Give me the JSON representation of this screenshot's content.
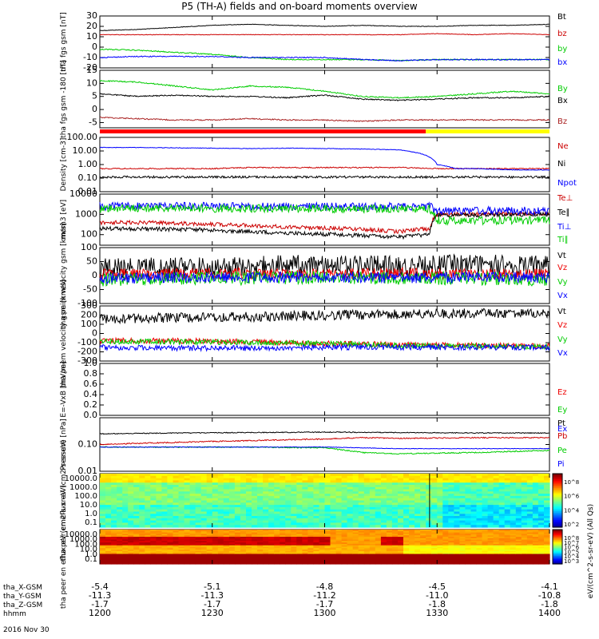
{
  "title": "P5 (TH-A) fields and on-board moments overview",
  "date": "2016 Nov 30",
  "colorbar_label": "eV/(cm^2-s-sr-eV) (All Qs)",
  "chart_data": [
    {
      "type": "line",
      "panel": "fgs",
      "ylabel": "tha fgs gsm [nT]",
      "ylim": [
        -20,
        30
      ],
      "yticks": [
        30,
        20,
        10,
        0,
        -10,
        -20
      ],
      "series": [
        {
          "name": "Bt",
          "color": "#000000",
          "x": [
            0,
            10,
            20,
            30,
            40,
            50,
            60,
            70,
            80,
            90,
            100,
            110,
            120
          ],
          "y": [
            16,
            17,
            19,
            21,
            22,
            21,
            20,
            21,
            20,
            20,
            21,
            21,
            22
          ]
        },
        {
          "name": "bz",
          "color": "#cc0000",
          "x": [
            0,
            10,
            20,
            30,
            40,
            50,
            60,
            70,
            80,
            90,
            100,
            110,
            120
          ],
          "y": [
            12,
            12,
            12,
            12,
            12,
            12,
            12,
            12,
            12,
            13,
            12,
            13,
            12
          ]
        },
        {
          "name": "by",
          "color": "#00cc00",
          "x": [
            0,
            10,
            20,
            30,
            40,
            50,
            60,
            70,
            80,
            90,
            100,
            110,
            120
          ],
          "y": [
            -2,
            -3,
            -5,
            -7,
            -10,
            -12,
            -12,
            -12,
            -13,
            -12,
            -12,
            -12,
            -12
          ]
        },
        {
          "name": "bx",
          "color": "#0000ff",
          "x": [
            0,
            10,
            20,
            30,
            40,
            50,
            60,
            70,
            80,
            90,
            100,
            110,
            120
          ],
          "y": [
            -10,
            -9,
            -9,
            -9,
            -10,
            -10,
            -10,
            -12,
            -13,
            -12,
            -12,
            -12,
            -12
          ]
        }
      ]
    },
    {
      "type": "line",
      "panel": "angles",
      "ylabel": "tha fgs gsm -180 [nT]",
      "ylim": [
        -7,
        15
      ],
      "yticks": [
        15,
        10,
        5,
        0,
        -5
      ],
      "series": [
        {
          "name": "By",
          "color": "#00cc00",
          "x": [
            0,
            10,
            20,
            30,
            40,
            50,
            60,
            70,
            80,
            90,
            100,
            110,
            120
          ],
          "y": [
            11,
            10.5,
            9,
            7.5,
            9,
            8.5,
            7,
            5,
            4.5,
            5,
            6,
            7,
            6
          ]
        },
        {
          "name": "Bx",
          "color": "#000000",
          "x": [
            0,
            10,
            20,
            30,
            40,
            50,
            60,
            70,
            80,
            90,
            100,
            110,
            120
          ],
          "y": [
            6,
            5,
            5.5,
            5,
            5,
            4.5,
            5.5,
            4,
            3.5,
            4,
            4.5,
            4.5,
            5
          ]
        },
        {
          "name": "Bz",
          "color": "#aa2222",
          "x": [
            0,
            10,
            20,
            30,
            40,
            50,
            60,
            70,
            80,
            90,
            100,
            110,
            120
          ],
          "y": [
            -3,
            -3.5,
            -4,
            -4,
            -3.5,
            -4,
            -4,
            -4.5,
            -4,
            -4,
            -4,
            -4,
            -4
          ]
        }
      ]
    },
    {
      "type": "line",
      "panel": "density",
      "ylabel": "Density [cm-3]",
      "scale": "log",
      "ylim": [
        0.01,
        100
      ],
      "yticks": [
        "100.00",
        "10.00",
        "1.00",
        "0.10",
        "0.01"
      ],
      "series": [
        {
          "name": "Ne",
          "color": "#cc0000",
          "x": [
            0,
            10,
            20,
            30,
            40,
            50,
            60,
            70,
            80,
            90,
            100,
            110,
            120
          ],
          "y": [
            0.5,
            0.5,
            0.5,
            0.5,
            0.6,
            0.6,
            0.6,
            0.6,
            0.6,
            0.5,
            0.5,
            0.5,
            0.5
          ]
        },
        {
          "name": "Ni",
          "color": "#000000",
          "x": [
            0,
            10,
            20,
            30,
            40,
            50,
            60,
            70,
            80,
            90,
            100,
            110,
            120
          ],
          "y": [
            0.12,
            0.12,
            0.12,
            0.12,
            0.12,
            0.12,
            0.12,
            0.12,
            0.12,
            0.12,
            0.12,
            0.12,
            0.12
          ]
        },
        {
          "name": "Npot",
          "color": "#0000ff",
          "x": [
            0,
            10,
            20,
            30,
            40,
            50,
            60,
            70,
            80,
            86,
            90,
            95,
            100,
            110,
            120
          ],
          "y": [
            18,
            18,
            17,
            16,
            15,
            16,
            15,
            14,
            12,
            6,
            1,
            0.5,
            0.5,
            0.4,
            0.4
          ]
        }
      ]
    },
    {
      "type": "line",
      "panel": "temperature",
      "ylabel": "mom3 [eV]",
      "scale": "log",
      "ylim": [
        30,
        10000
      ],
      "yticks": [
        "10000",
        "1000",
        "100"
      ],
      "series": [
        {
          "name": "Te⊥",
          "color": "#cc0000",
          "x": [
            0,
            10,
            20,
            30,
            40,
            50,
            60,
            70,
            80,
            85,
            88,
            90,
            100,
            110,
            120
          ],
          "y": [
            400,
            390,
            370,
            330,
            280,
            240,
            210,
            180,
            140,
            180,
            190,
            1000,
            1000,
            1100,
            1100
          ]
        },
        {
          "name": "Te∥",
          "color": "#000000",
          "x": [
            0,
            10,
            20,
            30,
            40,
            50,
            60,
            70,
            80,
            85,
            88,
            90,
            100,
            110,
            120
          ],
          "y": [
            200,
            195,
            185,
            165,
            140,
            120,
            105,
            90,
            75,
            90,
            100,
            900,
            900,
            1000,
            1000
          ]
        },
        {
          "name": "Ti⊥",
          "color": "#0000ff",
          "x": [
            0,
            30,
            60,
            88,
            90,
            120
          ],
          "y": [
            2500,
            2500,
            2400,
            2400,
            1500,
            1500
          ]
        },
        {
          "name": "Ti∥",
          "color": "#00cc00",
          "x": [
            0,
            30,
            60,
            88,
            90,
            120
          ],
          "y": [
            2000,
            2000,
            1900,
            1900,
            500,
            500
          ]
        }
      ]
    },
    {
      "type": "line",
      "panel": "ion-velocity",
      "ylabel": "tha peim velocity gsm [km/s]",
      "ylim": [
        -100,
        100
      ],
      "yticks": [
        100,
        50,
        0,
        -50,
        -100
      ],
      "series": [
        {
          "name": "Vt",
          "color": "#000000",
          "x": [
            0,
            20,
            40,
            60,
            80,
            100,
            120
          ],
          "y": [
            25,
            30,
            35,
            40,
            35,
            40,
            35
          ]
        },
        {
          "name": "Vz",
          "color": "#ee0000",
          "x": [
            0,
            20,
            40,
            60,
            80,
            100,
            120
          ],
          "y": [
            5,
            5,
            8,
            5,
            8,
            5,
            5
          ]
        },
        {
          "name": "Vy",
          "color": "#00cc00",
          "x": [
            0,
            20,
            40,
            60,
            80,
            100,
            120
          ],
          "y": [
            -15,
            -10,
            -10,
            -5,
            -10,
            -10,
            -15
          ]
        },
        {
          "name": "Vx",
          "color": "#0000ff",
          "x": [
            0,
            20,
            40,
            60,
            80,
            100,
            120
          ],
          "y": [
            -10,
            -8,
            -6,
            -5,
            -8,
            -6,
            -8
          ]
        }
      ]
    },
    {
      "type": "line",
      "panel": "electron-velocity",
      "ylabel": "tha peem velocity gsm [km/s]",
      "ylim": [
        -300,
        300
      ],
      "yticks": [
        300,
        200,
        100,
        0,
        -100,
        -200,
        -300
      ],
      "series": [
        {
          "name": "Vt",
          "color": "#000000",
          "x": [
            0,
            20,
            40,
            60,
            80,
            100,
            120
          ],
          "y": [
            160,
            170,
            180,
            200,
            210,
            220,
            210
          ]
        },
        {
          "name": "Vz",
          "color": "#ee0000",
          "x": [
            0,
            20,
            40,
            60,
            80,
            100,
            120
          ],
          "y": [
            -80,
            -80,
            -90,
            -110,
            -120,
            -130,
            -140
          ]
        },
        {
          "name": "Vy",
          "color": "#00cc00",
          "x": [
            0,
            20,
            40,
            60,
            80,
            100,
            120
          ],
          "y": [
            -90,
            -90,
            -100,
            -110,
            -130,
            -140,
            -140
          ]
        },
        {
          "name": "Vx",
          "color": "#0000ff",
          "x": [
            0,
            20,
            40,
            60,
            80,
            100,
            120
          ],
          "y": [
            -150,
            -160,
            -160,
            -150,
            -150,
            -150,
            -150
          ]
        }
      ]
    },
    {
      "type": "line",
      "panel": "efield",
      "ylabel": "E=-VxB [mV/m]",
      "ylim": [
        0,
        1
      ],
      "yticks": [
        "1.0",
        "0.8",
        "0.6",
        "0.4",
        "0.2",
        "0.0"
      ],
      "series": [
        {
          "name": "Ez",
          "color": "#ee0000",
          "x": [],
          "y": []
        },
        {
          "name": "Ey",
          "color": "#00cc00",
          "x": [],
          "y": []
        },
        {
          "name": "Ex",
          "color": "#0000ff",
          "x": [],
          "y": []
        }
      ]
    },
    {
      "type": "line",
      "panel": "pressure",
      "ylabel": "Pressure [nPa]",
      "scale": "log",
      "ylim": [
        0.01,
        1
      ],
      "yticks": [
        "0.10",
        "0.01"
      ],
      "series": [
        {
          "name": "Pt",
          "color": "#000000",
          "x": [
            0,
            20,
            40,
            60,
            80,
            100,
            120
          ],
          "y": [
            0.25,
            0.27,
            0.28,
            0.29,
            0.28,
            0.27,
            0.27
          ]
        },
        {
          "name": "Pb",
          "color": "#cc0000",
          "x": [
            0,
            20,
            40,
            60,
            70,
            80,
            100,
            120
          ],
          "y": [
            0.1,
            0.12,
            0.14,
            0.16,
            0.18,
            0.17,
            0.18,
            0.18
          ]
        },
        {
          "name": "Pe",
          "color": "#00cc00",
          "x": [
            0,
            20,
            40,
            60,
            70,
            80,
            100,
            120
          ],
          "y": [
            0.08,
            0.08,
            0.08,
            0.075,
            0.05,
            0.045,
            0.05,
            0.06
          ]
        },
        {
          "name": "Pi",
          "color": "#0000ff",
          "x": [
            0,
            20,
            40,
            60,
            80,
            100,
            120
          ],
          "y": [
            0.08,
            0.08,
            0.08,
            0.08,
            0.07,
            0.07,
            0.07
          ]
        }
      ]
    },
    {
      "type": "heatmap",
      "panel": "ion-spectrogram",
      "ylabel": "tha peir en eflux eV (cm2-s-sr-eV)",
      "yticks": [
        "10000.0",
        "1000.0",
        "100.0",
        "10.0",
        "1.0",
        "0.1"
      ],
      "colorbar_ticks": [
        "10^8",
        "10^6",
        "10^4",
        "10^2"
      ]
    },
    {
      "type": "heatmap",
      "panel": "electron-spectrogram",
      "ylabel": "tha peer en eflux eV (cm2-s-sr-eV)",
      "yticks": [
        "10000.0",
        "1000.0",
        "100.0",
        "10.0",
        "1.0",
        "0.1"
      ],
      "colorbar_ticks": [
        "10^8",
        "10^7",
        "10^6",
        "10^5",
        "10^4",
        "10^3"
      ]
    }
  ],
  "xaxis": {
    "range_minutes": [
      0,
      120
    ],
    "rows": [
      {
        "label": "tha_X-GSM",
        "values": [
          "-5.4",
          "-5.1",
          "-4.8",
          "-4.5",
          "-4.1"
        ]
      },
      {
        "label": "tha_Y-GSM",
        "values": [
          "-11.3",
          "-11.3",
          "-11.2",
          "-11.0",
          "-10.8"
        ]
      },
      {
        "label": "tha_Z-GSM",
        "values": [
          "-1.7",
          "-1.7",
          "-1.7",
          "-1.8",
          "-1.8"
        ]
      },
      {
        "label": "hhmm",
        "values": [
          "1200",
          "1230",
          "1300",
          "1330",
          "1400"
        ]
      }
    ]
  },
  "mode_bar": {
    "colors": [
      "#ff0000",
      "#ffff00"
    ],
    "switch_minute": 87
  }
}
